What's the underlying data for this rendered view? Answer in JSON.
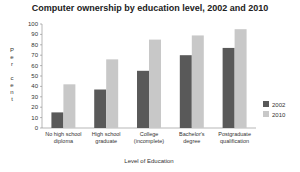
{
  "chart_data": {
    "type": "bar",
    "title": "Computer ownership by education level, 2002 and 2010",
    "x_label": "Level of Education",
    "y_label": "Per cent",
    "categories": [
      "No high school diploma",
      "High school graduate",
      "College (incomplete)",
      "Bachelor's degree",
      "Postgraduate qualification"
    ],
    "series": [
      {
        "name": "2002",
        "color": "#595959",
        "values": [
          15,
          37,
          55,
          70,
          77
        ]
      },
      {
        "name": "2010",
        "color": "#c8c8c8",
        "values": [
          42,
          66,
          85,
          89,
          95
        ]
      }
    ],
    "ylim": [
      0,
      100
    ],
    "yticks": [
      0,
      10,
      20,
      30,
      40,
      50,
      60,
      70,
      80,
      90,
      100
    ],
    "grid": false,
    "legend": "right"
  }
}
